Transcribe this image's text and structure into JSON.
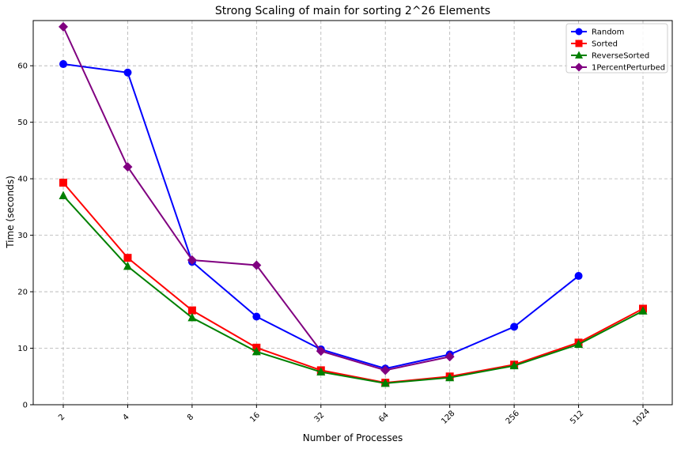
{
  "chart_data": {
    "type": "line",
    "title": "Strong Scaling of main for sorting 2^26 Elements",
    "xlabel": "Number of Processes",
    "ylabel": "Time (seconds)",
    "categories": [
      "2",
      "4",
      "8",
      "16",
      "32",
      "64",
      "128",
      "256",
      "512",
      "1024"
    ],
    "ylim": [
      0,
      68
    ],
    "yticks": [
      0,
      10,
      20,
      30,
      40,
      50,
      60
    ],
    "grid": true,
    "legend_position": "top-right",
    "series": [
      {
        "name": "Random",
        "color": "#0000ff",
        "marker": "circle",
        "values": [
          60.3,
          58.8,
          25.3,
          15.6,
          9.8,
          6.4,
          8.9,
          13.8,
          22.8,
          null
        ]
      },
      {
        "name": "Sorted",
        "color": "#ff0000",
        "marker": "square",
        "values": [
          39.3,
          26.0,
          16.7,
          10.1,
          6.1,
          3.9,
          5.0,
          7.1,
          11.0,
          17.0
        ]
      },
      {
        "name": "ReverseSorted",
        "color": "#008000",
        "marker": "triangle",
        "values": [
          37.0,
          24.5,
          15.4,
          9.4,
          5.8,
          3.8,
          4.8,
          6.9,
          10.7,
          16.6
        ]
      },
      {
        "name": "1PercentPerturbed",
        "color": "#800080",
        "marker": "diamond",
        "values": [
          66.9,
          42.1,
          25.6,
          24.7,
          9.5,
          6.1,
          8.5,
          null,
          null,
          null
        ]
      }
    ]
  }
}
